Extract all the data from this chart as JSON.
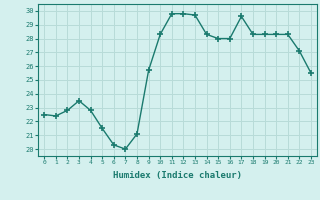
{
  "x": [
    0,
    1,
    2,
    3,
    4,
    5,
    6,
    7,
    8,
    9,
    10,
    11,
    12,
    13,
    14,
    15,
    16,
    17,
    18,
    19,
    20,
    21,
    22,
    23
  ],
  "y": [
    22.5,
    22.4,
    22.8,
    23.5,
    22.8,
    21.5,
    20.3,
    20.0,
    21.1,
    25.7,
    28.3,
    29.8,
    29.8,
    29.7,
    28.3,
    28.0,
    28.0,
    29.6,
    28.3,
    28.3,
    28.3,
    28.3,
    27.1,
    25.5
  ],
  "line_color": "#1a7a6e",
  "marker": "+",
  "marker_size": 4,
  "marker_lw": 1.2,
  "bg_color": "#d4f0ee",
  "grid_color": "#b8dbd8",
  "xlabel": "Humidex (Indice chaleur)",
  "ylim": [
    19.5,
    30.5
  ],
  "xlim": [
    -0.5,
    23.5
  ],
  "yticks": [
    20,
    21,
    22,
    23,
    24,
    25,
    26,
    27,
    28,
    29,
    30
  ],
  "xticks": [
    0,
    1,
    2,
    3,
    4,
    5,
    6,
    7,
    8,
    9,
    10,
    11,
    12,
    13,
    14,
    15,
    16,
    17,
    18,
    19,
    20,
    21,
    22,
    23
  ],
  "tick_color": "#1a7a6e",
  "label_color": "#1a7a6e",
  "spine_color": "#1a7a6e",
  "linewidth": 1.0
}
